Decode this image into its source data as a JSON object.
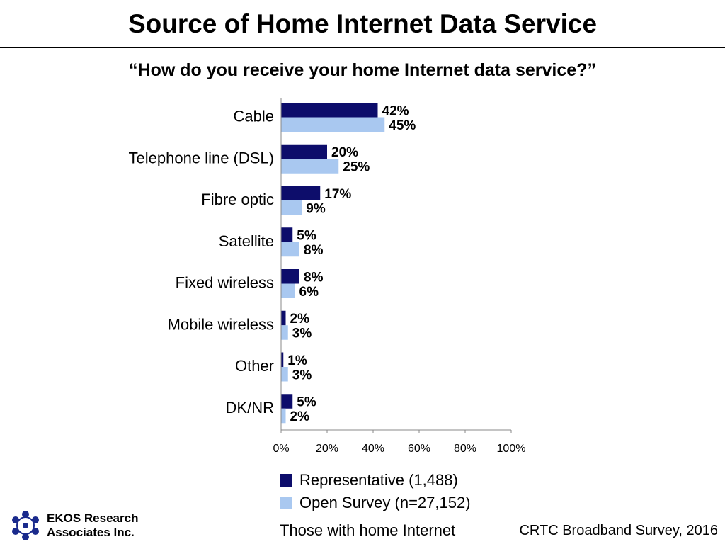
{
  "title": "Source of Home Internet Data Service",
  "subtitle": "“How do you receive your home Internet data service?”",
  "colors": {
    "representative": "#0d0d6b",
    "open_survey": "#a9c8f0",
    "axis": "#888888"
  },
  "chart_data": {
    "type": "bar",
    "orientation": "horizontal",
    "categories": [
      "Cable",
      "Telephone line (DSL)",
      "Fibre optic",
      "Satellite",
      "Fixed wireless",
      "Mobile wireless",
      "Other",
      "DK/NR"
    ],
    "series": [
      {
        "name": "Representative (1,488)",
        "values": [
          42,
          20,
          17,
          5,
          8,
          2,
          1,
          5
        ],
        "labels": [
          "42%",
          "20%",
          "17%",
          "5%",
          "8%",
          "2%",
          "1%",
          "5%"
        ]
      },
      {
        "name": "Open Survey (n=27,152)",
        "values": [
          45,
          25,
          9,
          8,
          6,
          3,
          3,
          2
        ],
        "labels": [
          "45%",
          "25%",
          "9%",
          "8%",
          "6%",
          "3%",
          "3%",
          "2%"
        ]
      }
    ],
    "xlim": [
      0,
      100
    ],
    "xticks": [
      "0%",
      "20%",
      "40%",
      "60%",
      "80%",
      "100%"
    ],
    "grid": false,
    "legend_position": "bottom"
  },
  "legend": [
    "Representative (1,488)",
    "Open Survey (n=27,152)"
  ],
  "company": {
    "line1": "EKOS Research",
    "line2": "Associates Inc."
  },
  "base_note": "Those with home Internet",
  "source": "CRTC Broadband Survey, 2016"
}
